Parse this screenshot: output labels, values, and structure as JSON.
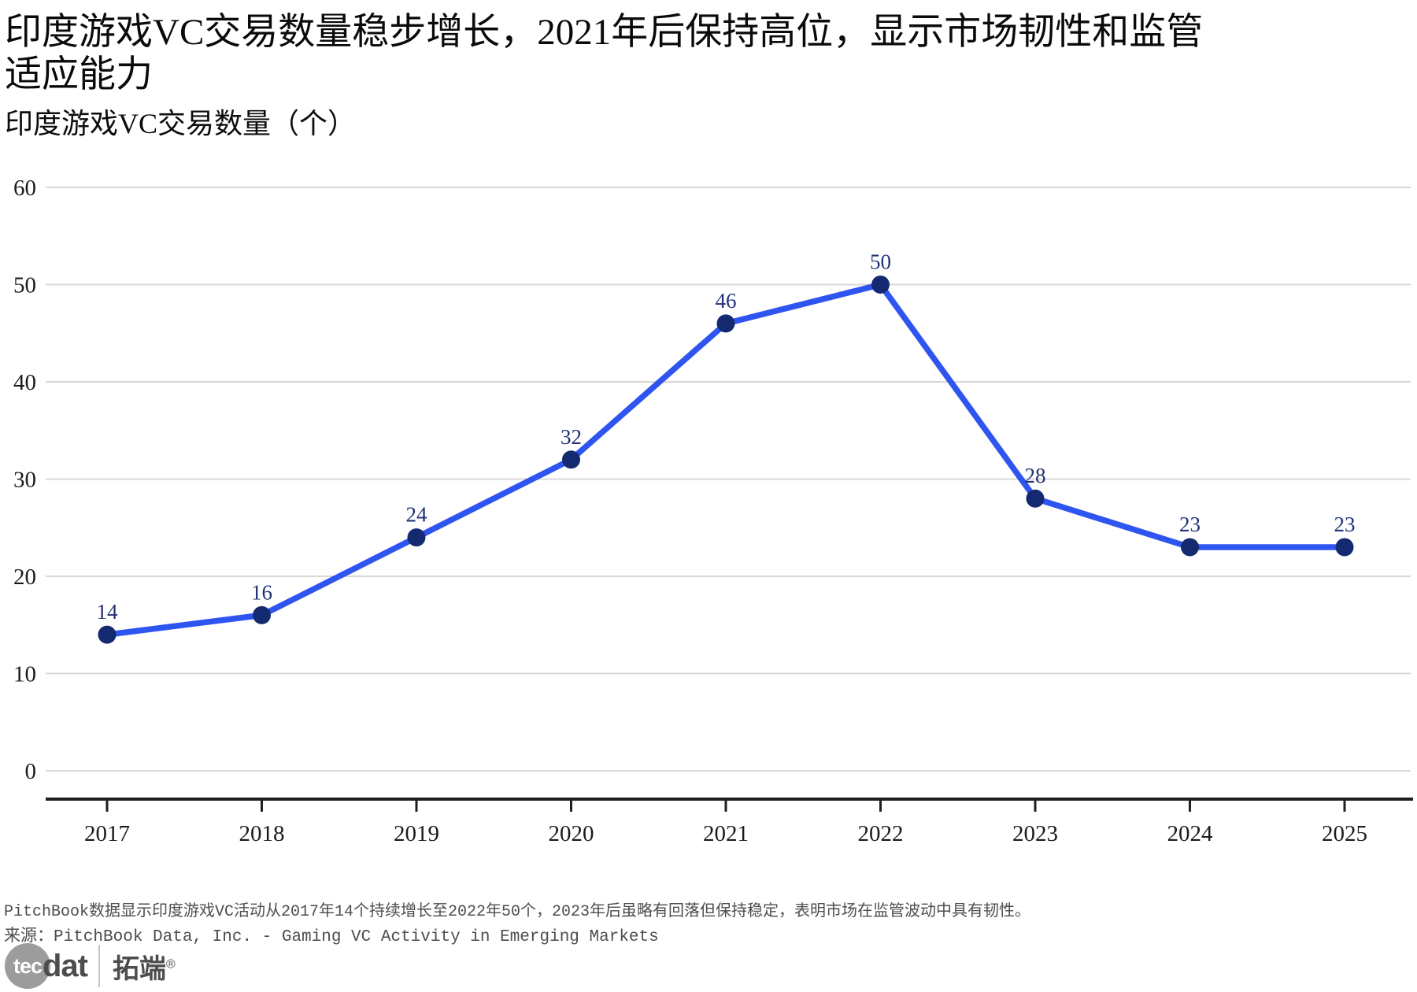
{
  "header": {
    "title": "印度游戏VC交易数量稳步增长，2021年后保持高位，显示市场韧性和监管适应能力",
    "title_line1": "印度游戏VC交易数量稳步增长，2021年后保持高位，显示市场韧性和监管",
    "title_line2": "适应能力",
    "subtitle": "印度游戏VC交易数量（个）"
  },
  "chart_data": {
    "type": "line",
    "title": "印度游戏VC交易数量（个）",
    "categories": [
      2017,
      2018,
      2019,
      2020,
      2021,
      2022,
      2023,
      2024,
      2025
    ],
    "series": [
      {
        "name": "印度游戏VC交易数量",
        "values": [
          14,
          16,
          24,
          32,
          46,
          50,
          28,
          23,
          23
        ]
      }
    ],
    "xlabel": "",
    "ylabel": "",
    "ylim": [
      0,
      60
    ],
    "yticks": [
      0,
      10,
      20,
      30,
      40,
      50,
      60
    ],
    "grid": true,
    "legend_position": "none",
    "colors": {
      "line": "#2e55f0",
      "marker": "#142a70",
      "data_label": "#213177",
      "gridline": "#d8d8d8",
      "axis": "#1f1f1f",
      "tick_label": "#1a1a1a"
    }
  },
  "footer": {
    "note": "PitchBook数据显示印度游戏VC活动从2017年14个持续增长至2022年50个，2023年后虽略有回落但保持稳定，表明市场在监管波动中具有韧性。",
    "source": "来源：PitchBook Data, Inc. - Gaming VC Activity in Emerging Markets"
  },
  "logo": {
    "circle_text": "tec",
    "suffix": "dat",
    "brand_cn": "拓端",
    "registered": "®"
  }
}
